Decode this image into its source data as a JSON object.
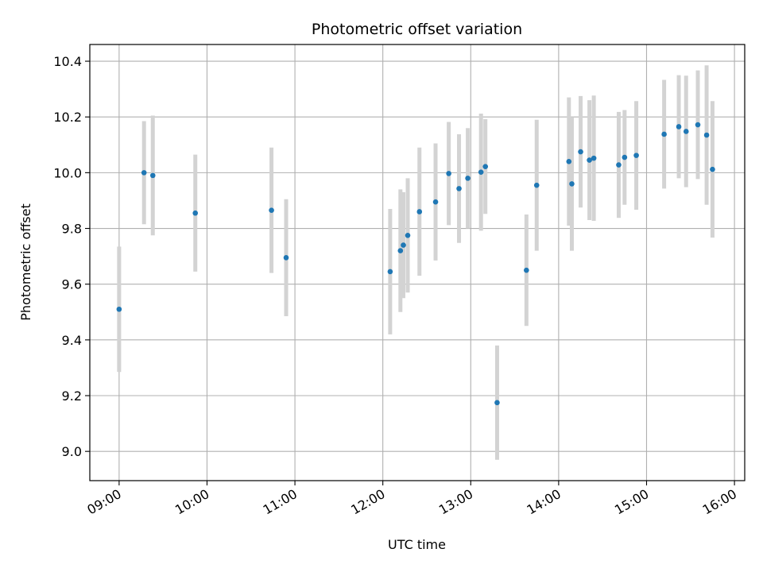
{
  "chart_data": {
    "type": "scatter",
    "title": "Photometric offset variation",
    "xlabel": "UTC time",
    "ylabel": "Photometric offset",
    "grid": true,
    "xlim": [
      "08:40",
      "16:07"
    ],
    "ylim": [
      8.895,
      10.46
    ],
    "x_ticks": [
      "09:00",
      "10:00",
      "11:00",
      "12:00",
      "13:00",
      "14:00",
      "15:00",
      "16:00"
    ],
    "y_ticks": [
      9.0,
      9.2,
      9.4,
      9.6,
      9.8,
      10.0,
      10.2,
      10.4
    ],
    "y_tick_labels": [
      "9.0",
      "9.2",
      "9.4",
      "9.6",
      "9.8",
      "10.0",
      "10.2",
      "10.4"
    ],
    "point_color": "#1f77b4",
    "errorbar_color": "#d3d3d3",
    "points": [
      {
        "time": "09:00",
        "y": 9.51,
        "err": 0.225
      },
      {
        "time": "09:17",
        "y": 10.0,
        "err": 0.185
      },
      {
        "time": "09:23",
        "y": 9.99,
        "err": 0.215
      },
      {
        "time": "09:52",
        "y": 9.855,
        "err": 0.21
      },
      {
        "time": "10:44",
        "y": 9.865,
        "err": 0.225
      },
      {
        "time": "10:54",
        "y": 9.695,
        "err": 0.21
      },
      {
        "time": "12:05",
        "y": 9.645,
        "err": 0.225
      },
      {
        "time": "12:12",
        "y": 9.72,
        "err": 0.22
      },
      {
        "time": "12:14",
        "y": 9.74,
        "err": 0.19
      },
      {
        "time": "12:17",
        "y": 9.775,
        "err": 0.205
      },
      {
        "time": "12:25",
        "y": 9.86,
        "err": 0.23
      },
      {
        "time": "12:36",
        "y": 9.895,
        "err": 0.21
      },
      {
        "time": "12:45",
        "y": 9.997,
        "err": 0.185
      },
      {
        "time": "12:52",
        "y": 9.943,
        "err": 0.195
      },
      {
        "time": "12:58",
        "y": 9.98,
        "err": 0.18
      },
      {
        "time": "13:07",
        "y": 10.002,
        "err": 0.21
      },
      {
        "time": "13:10",
        "y": 10.022,
        "err": 0.17
      },
      {
        "time": "13:18",
        "y": 9.175,
        "err": 0.205
      },
      {
        "time": "13:38",
        "y": 9.65,
        "err": 0.2
      },
      {
        "time": "13:45",
        "y": 9.955,
        "err": 0.235
      },
      {
        "time": "14:07",
        "y": 10.04,
        "err": 0.23
      },
      {
        "time": "14:09",
        "y": 9.96,
        "err": 0.24
      },
      {
        "time": "14:15",
        "y": 10.075,
        "err": 0.2
      },
      {
        "time": "14:21",
        "y": 10.045,
        "err": 0.215
      },
      {
        "time": "14:24",
        "y": 10.052,
        "err": 0.225
      },
      {
        "time": "14:41",
        "y": 10.028,
        "err": 0.19
      },
      {
        "time": "14:45",
        "y": 10.055,
        "err": 0.17
      },
      {
        "time": "14:53",
        "y": 10.062,
        "err": 0.195
      },
      {
        "time": "15:12",
        "y": 10.138,
        "err": 0.195
      },
      {
        "time": "15:22",
        "y": 10.165,
        "err": 0.185
      },
      {
        "time": "15:27",
        "y": 10.148,
        "err": 0.2
      },
      {
        "time": "15:35",
        "y": 10.172,
        "err": 0.195
      },
      {
        "time": "15:41",
        "y": 10.135,
        "err": 0.25
      },
      {
        "time": "15:45",
        "y": 10.012,
        "err": 0.245
      }
    ]
  }
}
